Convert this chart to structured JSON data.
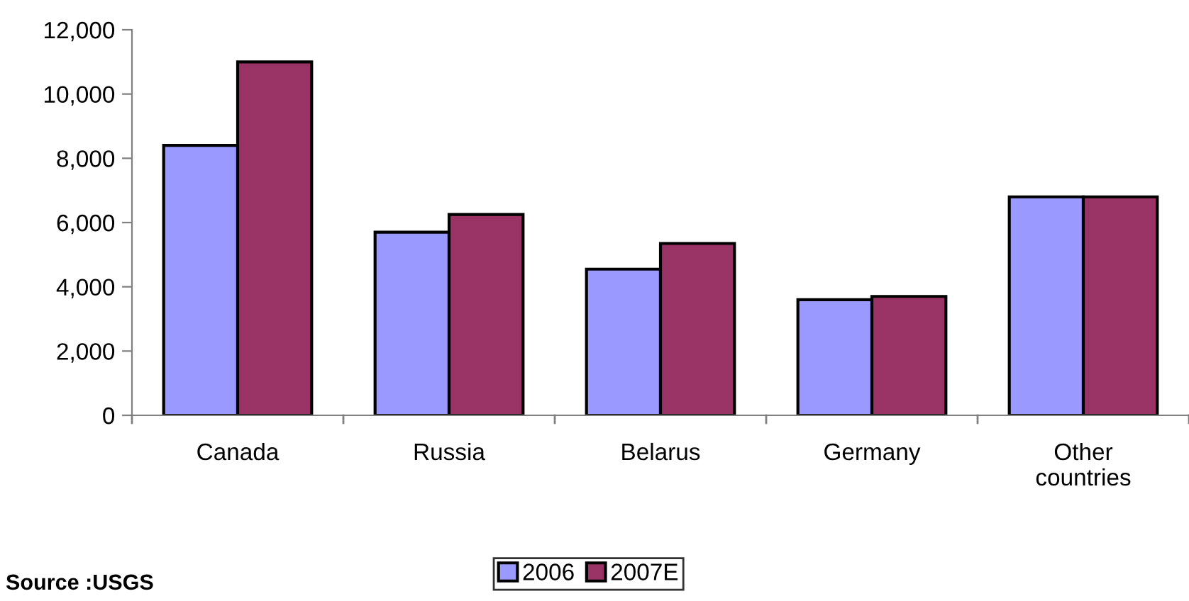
{
  "chart_data": {
    "type": "bar",
    "categories": [
      "Canada",
      "Russia",
      "Belarus",
      "Germany",
      "Other\ncountries"
    ],
    "series": [
      {
        "name": "2006",
        "color": "#9999ff",
        "values": [
          8400,
          5700,
          4550,
          3600,
          6800
        ]
      },
      {
        "name": "2007E",
        "color": "#993366",
        "values": [
          11000,
          6250,
          5350,
          3700,
          6800
        ]
      }
    ],
    "ylim": [
      0,
      12000
    ],
    "yticks": [
      {
        "value": 0,
        "label": "0"
      },
      {
        "value": 2000,
        "label": "2,000"
      },
      {
        "value": 4000,
        "label": "4,000"
      },
      {
        "value": 6000,
        "label": "6,000"
      },
      {
        "value": 8000,
        "label": "8,000"
      },
      {
        "value": 10000,
        "label": "10,000"
      },
      {
        "value": 12000,
        "label": "12,000"
      }
    ],
    "grid": false,
    "legend": "bottom",
    "annotations": [
      "Source :USGS"
    ]
  }
}
